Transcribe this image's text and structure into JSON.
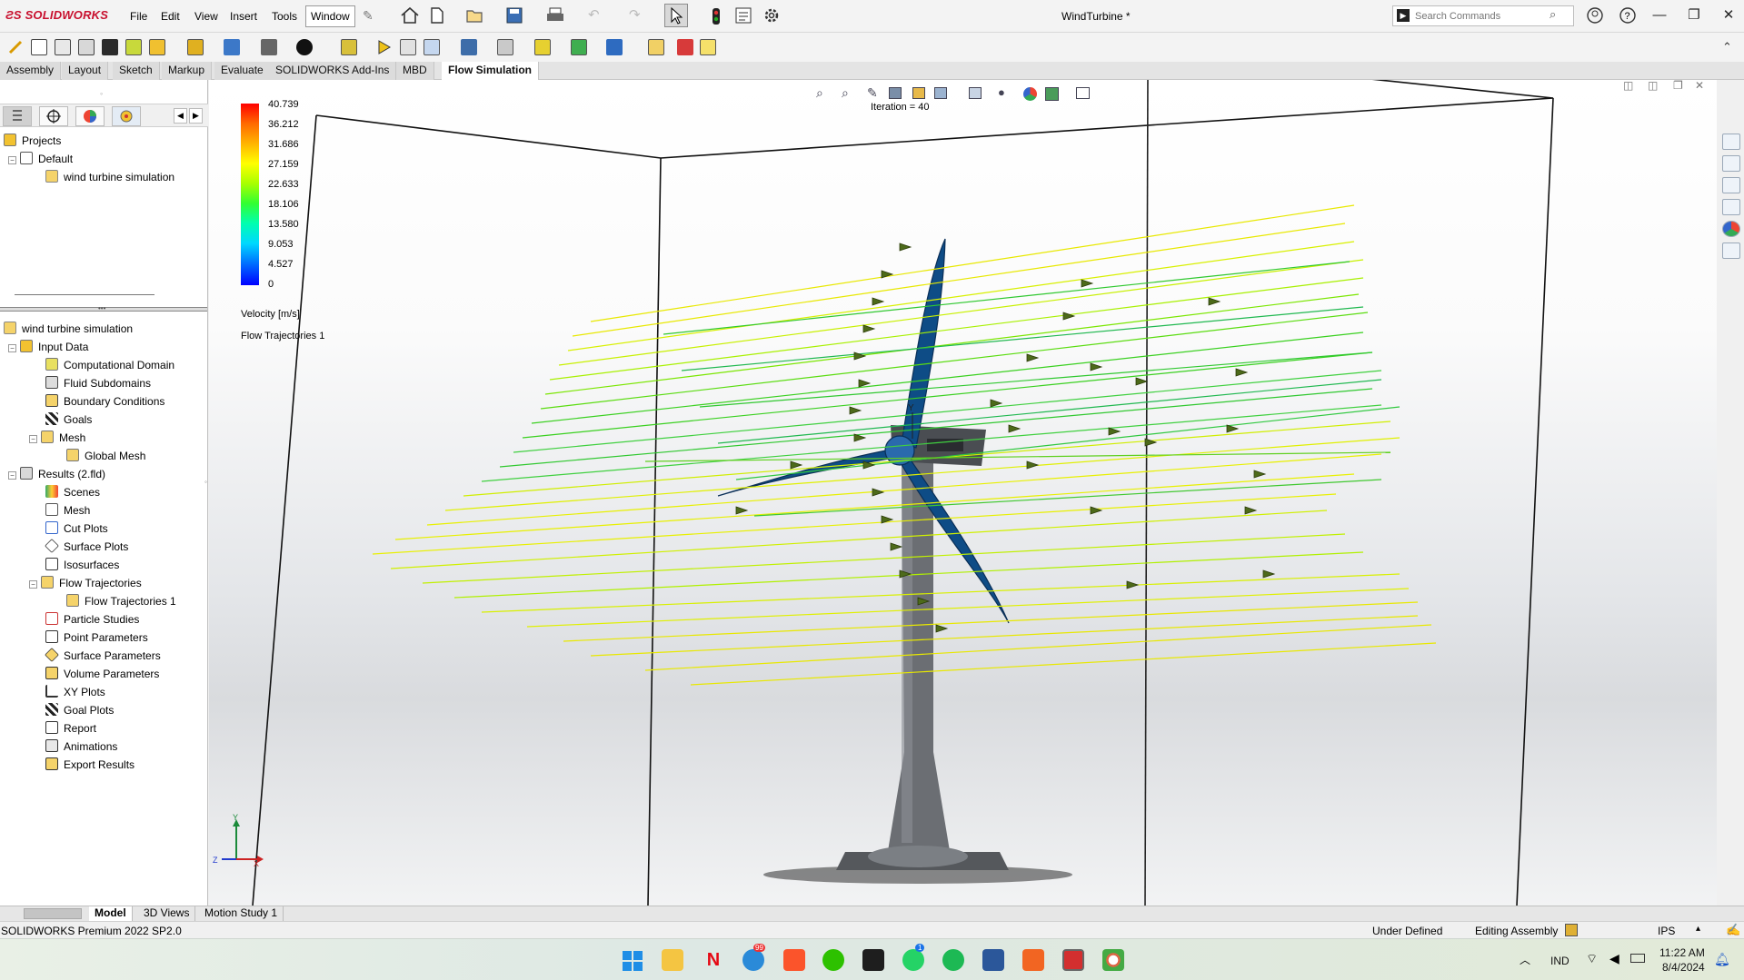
{
  "app": {
    "logo_text": "SOLIDWORKS",
    "document_title": "WindTurbine *"
  },
  "menu": {
    "items": [
      "File",
      "Edit",
      "View",
      "Insert",
      "Tools",
      "Window"
    ]
  },
  "search": {
    "placeholder": "Search Commands"
  },
  "command_tabs": [
    "Assembly",
    "Layout",
    "Sketch",
    "Markup",
    "Evaluate",
    "SOLIDWORKS Add-Ins",
    "MBD",
    "Flow Simulation"
  ],
  "projects_tree": {
    "root": "Projects",
    "config": "Default",
    "project": "wind turbine simulation"
  },
  "analysis_tree": {
    "root": "wind turbine simulation",
    "input_data": "Input Data",
    "input_items": [
      "Computational Domain",
      "Fluid Subdomains",
      "Boundary Conditions",
      "Goals",
      "Mesh"
    ],
    "mesh_child": "Global Mesh",
    "results": "Results (2.fld)",
    "result_items": [
      "Scenes",
      "Mesh",
      "Cut Plots",
      "Surface Plots",
      "Isosurfaces",
      "Flow Trajectories"
    ],
    "trajectories_child": "Flow Trajectories 1",
    "result_items_after": [
      "Particle Studies",
      "Point Parameters",
      "Surface Parameters",
      "Volume Parameters",
      "XY Plots",
      "Goal Plots",
      "Report",
      "Animations",
      "Export Results"
    ]
  },
  "legend": {
    "values": [
      "40.739",
      "36.212",
      "31.686",
      "27.159",
      "22.633",
      "18.106",
      "13.580",
      "9.053",
      "4.527",
      "0"
    ],
    "colors": [
      "#ff0000",
      "#ff6a00",
      "#ffb400",
      "#ffff00",
      "#a8ff00",
      "#32ff32",
      "#00ffb0",
      "#00d8ff",
      "#0070ff",
      "#0000ff"
    ],
    "unit_label": "Velocity [m/s]",
    "plot_label": "Flow Trajectories 1"
  },
  "viewport": {
    "iteration_text": "Iteration = 40",
    "axis_labels": [
      "Y",
      "Z",
      "X"
    ]
  },
  "bottom_tabs": [
    "Model",
    "3D Views",
    "Motion Study 1"
  ],
  "status": {
    "product": "SOLIDWORKS Premium 2022 SP2.0",
    "definition": "Under Defined",
    "mode": "Editing Assembly",
    "units": "IPS"
  },
  "taskbar": {
    "lang": "IND",
    "time": "11:22 AM",
    "date": "8/4/2024",
    "badge_mail": "99",
    "badge_whatsapp": "1"
  }
}
